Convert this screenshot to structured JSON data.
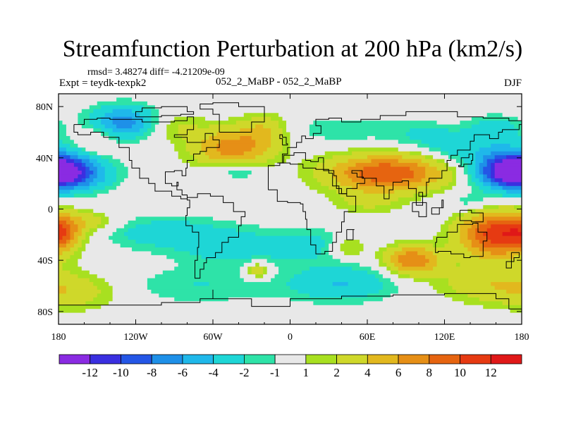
{
  "title": "Streamfunction Perturbation at 200 hPa (km2/s)",
  "stats": "rmsd= 3.48274 diff= -4.21209e-09",
  "expt": "Expt = teydk-texpk2",
  "experiment_pair": "052_2_MaBP - 052_2_MaBP",
  "season": "DJF",
  "chart_data": {
    "type": "heatmap",
    "title": "Streamfunction Perturbation at 200 hPa (km2/s)",
    "units": "km2/s",
    "xlabel": "",
    "ylabel": "",
    "xlim": [
      -180,
      180
    ],
    "ylim": [
      -90,
      90
    ],
    "x_ticks": [
      {
        "value": -180,
        "label": "180"
      },
      {
        "value": -120,
        "label": "120W"
      },
      {
        "value": -60,
        "label": "60W"
      },
      {
        "value": 0,
        "label": "0"
      },
      {
        "value": 60,
        "label": "60E"
      },
      {
        "value": 120,
        "label": "120E"
      },
      {
        "value": 180,
        "label": "180"
      }
    ],
    "y_ticks": [
      {
        "value": 80,
        "label": "80N"
      },
      {
        "value": 40,
        "label": "40N"
      },
      {
        "value": 0,
        "label": "0"
      },
      {
        "value": -40,
        "label": "40S"
      },
      {
        "value": -80,
        "label": "80S"
      }
    ],
    "contour_levels": [
      -12,
      -10,
      -8,
      -6,
      -4,
      -2,
      -1,
      1,
      2,
      4,
      6,
      8,
      10,
      12
    ],
    "colorbar": {
      "colors": [
        "#8a2be2",
        "#3a2fe0",
        "#2456e6",
        "#1e90e8",
        "#1fb8ea",
        "#1ed6d6",
        "#2ee3a8",
        "#e8e8e8",
        "#a8e020",
        "#cfd82a",
        "#e2b81e",
        "#e68f16",
        "#e66410",
        "#e63a12",
        "#e01818"
      ],
      "labels": [
        "-12",
        "-10",
        "-8",
        "-6",
        "-4",
        "-2",
        "-1",
        "1",
        "2",
        "4",
        "6",
        "8",
        "10",
        "12"
      ]
    },
    "anomalies": [
      {
        "lon": -175,
        "lat": 28,
        "amp": -11,
        "sx": 22,
        "sy": 9
      },
      {
        "lon": -130,
        "lat": 68,
        "amp": -7,
        "sx": 18,
        "sy": 9
      },
      {
        "lon": -20,
        "lat": 62,
        "amp": 3,
        "sx": 12,
        "sy": 9
      },
      {
        "lon": -45,
        "lat": 48,
        "amp": 7,
        "sx": 22,
        "sy": 11
      },
      {
        "lon": -40,
        "lat": 30,
        "amp": -3,
        "sx": 14,
        "sy": 5
      },
      {
        "lon": -90,
        "lat": 65,
        "amp": 2,
        "sx": 15,
        "sy": 8
      },
      {
        "lon": 40,
        "lat": 62,
        "amp": -2,
        "sx": 25,
        "sy": 7
      },
      {
        "lon": 75,
        "lat": 28,
        "amp": 10,
        "sx": 32,
        "sy": 10
      },
      {
        "lon": 100,
        "lat": 58,
        "amp": -2,
        "sx": 20,
        "sy": 8
      },
      {
        "lon": 130,
        "lat": 48,
        "amp": -3,
        "sx": 18,
        "sy": 9
      },
      {
        "lon": 170,
        "lat": 32,
        "amp": -9,
        "sx": 18,
        "sy": 11
      },
      {
        "lon": 160,
        "lat": 62,
        "amp": -3,
        "sx": 15,
        "sy": 8
      },
      {
        "lon": -160,
        "lat": -10,
        "amp": 3,
        "sx": 20,
        "sy": 6
      },
      {
        "lon": -178,
        "lat": -20,
        "amp": 5,
        "sx": 10,
        "sy": 8
      },
      {
        "lon": -100,
        "lat": -18,
        "amp": -3,
        "sx": 35,
        "sy": 9
      },
      {
        "lon": -40,
        "lat": -30,
        "amp": -3,
        "sx": 35,
        "sy": 10
      },
      {
        "lon": 20,
        "lat": -28,
        "amp": -2,
        "sx": 20,
        "sy": 9
      },
      {
        "lon": 40,
        "lat": -58,
        "amp": -4,
        "sx": 30,
        "sy": 10
      },
      {
        "lon": -70,
        "lat": -60,
        "amp": -2,
        "sx": 40,
        "sy": 10
      },
      {
        "lon": -25,
        "lat": -48,
        "amp": 4,
        "sx": 7,
        "sy": 5
      },
      {
        "lon": 45,
        "lat": -30,
        "amp": 3,
        "sx": 10,
        "sy": 6
      },
      {
        "lon": 95,
        "lat": -40,
        "amp": 8,
        "sx": 15,
        "sy": 8
      },
      {
        "lon": 160,
        "lat": -20,
        "amp": 11,
        "sx": 20,
        "sy": 13
      },
      {
        "lon": 150,
        "lat": -58,
        "amp": 3,
        "sx": 28,
        "sy": 10
      },
      {
        "lon": -170,
        "lat": -65,
        "amp": 3,
        "sx": 25,
        "sy": 10
      },
      {
        "lon": 60,
        "lat": 5,
        "amp": 2,
        "sx": 20,
        "sy": 7
      },
      {
        "lon": 140,
        "lat": 5,
        "amp": -2,
        "sx": 15,
        "sy": 6
      },
      {
        "lon": -150,
        "lat": 55,
        "amp": 2,
        "sx": 10,
        "sy": 8
      }
    ]
  }
}
